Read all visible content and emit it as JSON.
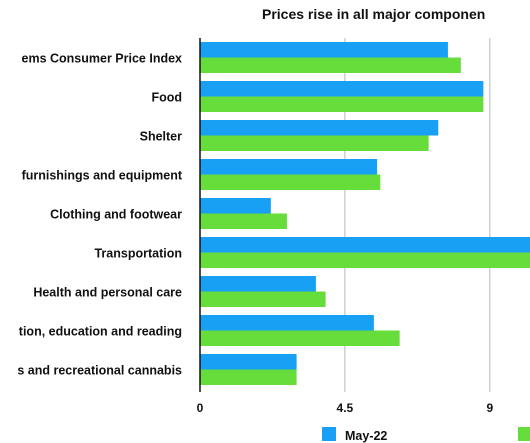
{
  "chart_data": {
    "type": "bar",
    "orientation": "horizontal",
    "title": "Prices rise in all major componen",
    "categories": [
      "ems Consumer Price Index",
      "Food",
      "Shelter",
      "furnishings and equipment",
      "Clothing and footwear",
      "Transportation",
      "Health and personal care",
      "tion, education and reading",
      "s and recreational cannabis"
    ],
    "series": [
      {
        "name": "May-22",
        "color": "#18a0f5",
        "values": [
          7.7,
          8.8,
          7.4,
          5.5,
          2.2,
          10.5,
          3.6,
          5.4,
          3.0
        ]
      },
      {
        "name": "",
        "color": "#66dd3a",
        "values": [
          8.1,
          8.8,
          7.1,
          5.6,
          2.7,
          10.5,
          3.9,
          6.2,
          3.0
        ]
      }
    ],
    "x_ticks": [
      "0",
      "4.5",
      "9"
    ],
    "xlim": [
      0,
      10.2
    ],
    "grid": true,
    "legend_position": "bottom"
  }
}
